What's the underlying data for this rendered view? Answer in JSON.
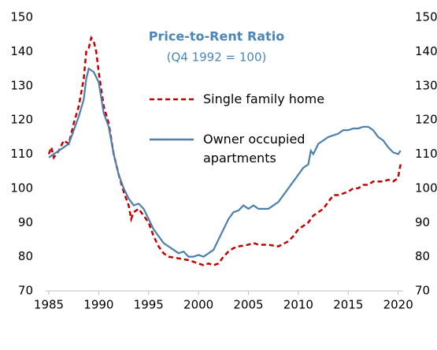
{
  "chart_data": {
    "type": "line",
    "title": "Price-to-Rent Ratio",
    "subtitle": "(Q4 1992 = 100)",
    "xlim": [
      1985,
      2020.5
    ],
    "xticks": [
      1985,
      1990,
      1995,
      2000,
      2005,
      2010,
      2015,
      2020
    ],
    "ylim": [
      70,
      150
    ],
    "yticks": [
      70,
      80,
      90,
      100,
      110,
      120,
      130,
      140,
      150
    ],
    "y2lim": [
      70,
      150
    ],
    "y2ticks": [
      70,
      80,
      90,
      100,
      110,
      120,
      130,
      140,
      150
    ],
    "title_color": "#4a86b8",
    "series": [
      {
        "name": "Single family home",
        "color": "#c00000",
        "dash": true,
        "x": [
          1985,
          1985.25,
          1985.5,
          1986,
          1986.5,
          1987,
          1987.5,
          1988,
          1988.5,
          1988.75,
          1989,
          1989.25,
          1989.5,
          1989.75,
          1990,
          1990.5,
          1991,
          1991.5,
          1992,
          1992.5,
          1993,
          1993.25,
          1993.5,
          1994,
          1994.5,
          1995,
          1995.5,
          1996,
          1996.5,
          1997,
          1998,
          1999,
          2000,
          2000.5,
          2001,
          2001.5,
          2002,
          2002.5,
          2003,
          2003.5,
          2004,
          2005,
          2005.5,
          2006,
          2007,
          2008,
          2009,
          2009.5,
          2010,
          2010.5,
          2011,
          2011.5,
          2012,
          2012.5,
          2013,
          2013.5,
          2014,
          2014.5,
          2015,
          2015.5,
          2016,
          2016.5,
          2017,
          2017.5,
          2018,
          2018.5,
          2019,
          2019.5,
          2020,
          2020.1,
          2020.25
        ],
        "values": [
          110,
          112,
          109,
          111,
          114,
          113,
          119,
          124,
          132,
          140,
          141,
          144,
          143,
          140,
          134,
          124,
          119,
          110,
          104,
          99,
          95,
          91,
          93,
          94,
          92,
          90,
          86,
          83,
          81,
          80,
          79.5,
          79,
          78,
          77.5,
          78,
          77.5,
          78,
          80,
          81.5,
          82.5,
          83,
          83.5,
          84,
          83.5,
          83.5,
          83,
          84.5,
          86,
          88,
          89,
          90,
          92,
          93,
          94,
          96,
          98,
          98,
          98.5,
          99,
          100,
          100,
          101,
          101,
          102,
          102,
          102,
          102.5,
          102,
          103,
          105,
          107
        ]
      },
      {
        "name": "Owner occupied apartments",
        "color": "#4b7fad",
        "dash": false,
        "x": [
          1985,
          1985.5,
          1986,
          1986.5,
          1987,
          1987.5,
          1988,
          1988.5,
          1988.75,
          1989,
          1989.5,
          1990,
          1990.5,
          1991,
          1991.5,
          1992,
          1992.5,
          1993,
          1993.5,
          1994,
          1994.5,
          1995,
          1995.5,
          1996,
          1996.5,
          1997,
          1997.5,
          1998,
          1998.5,
          1999,
          1999.5,
          2000,
          2000.5,
          2001,
          2001.5,
          2002,
          2002.5,
          2003,
          2003.5,
          2004,
          2004.5,
          2005,
          2005.5,
          2006,
          2007,
          2007.5,
          2008,
          2008.5,
          2009,
          2009.5,
          2010,
          2010.5,
          2011,
          2011.25,
          2011.5,
          2012,
          2012.5,
          2013,
          2014,
          2014.5,
          2015,
          2015.5,
          2016,
          2016.5,
          2017,
          2017.5,
          2018,
          2018.5,
          2019,
          2019.5,
          2020,
          2020.25
        ],
        "values": [
          109,
          110,
          111,
          112,
          113,
          117,
          121,
          126,
          132,
          135,
          134,
          131,
          122,
          118,
          110,
          104,
          100,
          97,
          95,
          95.5,
          94,
          91,
          88,
          86,
          84,
          83,
          82,
          81,
          81.5,
          80,
          80,
          80.5,
          80,
          81,
          82,
          85,
          88,
          91,
          93,
          93.5,
          95,
          94,
          95,
          94,
          94,
          95,
          96,
          98,
          100,
          102,
          104,
          106,
          107,
          111,
          110,
          113,
          114,
          115,
          116,
          117,
          117,
          117.5,
          117.5,
          118,
          118,
          117,
          115,
          114,
          112,
          110.5,
          110,
          111
        ]
      }
    ]
  }
}
